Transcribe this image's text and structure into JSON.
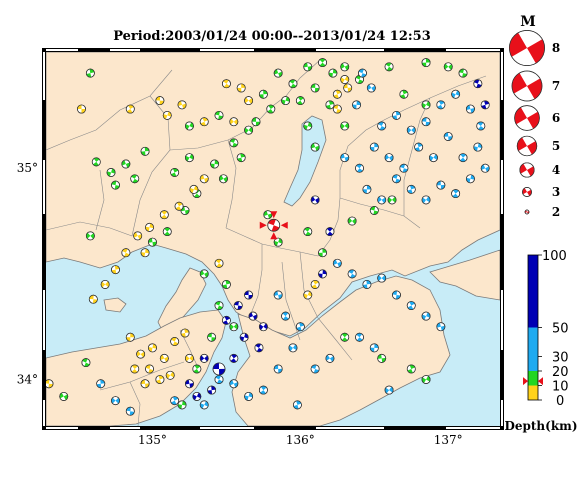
{
  "title": "Period:2003/01/24 00:00--2013/01/24 12:53",
  "map": {
    "lon_range": [
      134.28,
      137.35
    ],
    "lat_range": [
      33.78,
      35.55
    ],
    "lon_ticks": [
      {
        "value": 135,
        "label": "135°"
      },
      {
        "value": 136,
        "label": "136°"
      },
      {
        "value": 137,
        "label": "137°"
      }
    ],
    "lat_ticks": [
      {
        "value": 34,
        "label": "34°"
      },
      {
        "value": 35,
        "label": "35°"
      }
    ],
    "colors": {
      "sea": "#c8ecf7",
      "land": "#fce7cc",
      "border": "#7a7a7a"
    },
    "mainshock": {
      "lon": 135.82,
      "lat": 34.73,
      "color": "#e8101a"
    }
  },
  "magnitude_legend": {
    "header": "M",
    "items": [
      {
        "label": "8",
        "mag": 8
      },
      {
        "label": "7",
        "mag": 7
      },
      {
        "label": "6",
        "mag": 6
      },
      {
        "label": "5",
        "mag": 5
      },
      {
        "label": "4",
        "mag": 4
      },
      {
        "label": "3",
        "mag": 3
      },
      {
        "label": "2",
        "mag": 2
      }
    ],
    "color": "#e8101a"
  },
  "depth_scale": {
    "title": "Depth(km)",
    "range": [
      0,
      100
    ],
    "ticks": [
      {
        "value": 100,
        "label": "100"
      },
      {
        "value": 50,
        "label": "50"
      },
      {
        "value": 30,
        "label": "30"
      },
      {
        "value": 20,
        "label": "20"
      },
      {
        "value": 10,
        "label": "10"
      },
      {
        "value": 0,
        "label": "0"
      }
    ],
    "bands": [
      {
        "from": 0,
        "to": 10,
        "color": "#ffd21a"
      },
      {
        "from": 10,
        "to": 20,
        "color": "#22d622"
      },
      {
        "from": 20,
        "to": 50,
        "color": "#1eaaf0"
      },
      {
        "from": 50,
        "to": 100,
        "color": "#0000b4"
      }
    ],
    "marker_value": 13,
    "marker_color": "#e8101a"
  },
  "chart_data": {
    "type": "scatter",
    "title": "Period:2003/01/24 00:00--2013/01/24 12:53",
    "xlabel": "",
    "ylabel": "",
    "size_legend": "M",
    "color_legend": "Depth(km)",
    "xlim": [
      134.28,
      137.35
    ],
    "ylim": [
      33.78,
      35.55
    ],
    "series": [
      {
        "name": "",
        "fields": [
          "lon",
          "lat",
          "depth_km",
          "mag"
        ],
        "points": [
          [
            134.52,
            35.28,
            5,
            3
          ],
          [
            134.62,
            35.03,
            12,
            3
          ],
          [
            134.72,
            34.98,
            12,
            3
          ],
          [
            134.82,
            35.02,
            12,
            3
          ],
          [
            134.88,
            34.95,
            12,
            3
          ],
          [
            134.95,
            35.08,
            12,
            3
          ],
          [
            134.58,
            34.68,
            12,
            3
          ],
          [
            134.75,
            34.92,
            12,
            3
          ],
          [
            135.15,
            34.98,
            12,
            3
          ],
          [
            135.25,
            35.05,
            12,
            3
          ],
          [
            135.22,
            34.8,
            12,
            3
          ],
          [
            135.3,
            34.88,
            12,
            3
          ],
          [
            135.42,
            35.02,
            12,
            3
          ],
          [
            135.48,
            34.95,
            12,
            3
          ],
          [
            135.55,
            35.12,
            12,
            3
          ],
          [
            135.6,
            35.05,
            12,
            3
          ],
          [
            135.65,
            35.18,
            12,
            3
          ],
          [
            135.7,
            35.22,
            12,
            3
          ],
          [
            135.8,
            35.28,
            12,
            3
          ],
          [
            135.9,
            35.32,
            12,
            3
          ],
          [
            135.85,
            35.45,
            12,
            3
          ],
          [
            135.95,
            35.4,
            12,
            3
          ],
          [
            135.75,
            35.35,
            12,
            3
          ],
          [
            135.55,
            35.22,
            5,
            3
          ],
          [
            135.45,
            35.25,
            12,
            3
          ],
          [
            135.35,
            35.22,
            5,
            3
          ],
          [
            135.25,
            35.2,
            12,
            3
          ],
          [
            136.05,
            35.48,
            12,
            3
          ],
          [
            136.15,
            35.5,
            12,
            3
          ],
          [
            136.22,
            35.45,
            12,
            3
          ],
          [
            136.3,
            35.48,
            12,
            3
          ],
          [
            136.4,
            35.42,
            12,
            3
          ],
          [
            136.2,
            35.3,
            12,
            3
          ],
          [
            136.3,
            35.2,
            12,
            3
          ],
          [
            136.1,
            35.38,
            12,
            3
          ],
          [
            136.0,
            35.32,
            12,
            3
          ],
          [
            136.05,
            35.2,
            12,
            3
          ],
          [
            136.1,
            35.1,
            12,
            3
          ],
          [
            136.6,
            35.48,
            12,
            3
          ],
          [
            136.85,
            35.5,
            12,
            3
          ],
          [
            137.0,
            35.48,
            12,
            3
          ],
          [
            137.1,
            35.45,
            12,
            3
          ],
          [
            136.7,
            35.35,
            12,
            3
          ],
          [
            136.85,
            35.3,
            12,
            3
          ],
          [
            135.0,
            34.65,
            12,
            3
          ],
          [
            135.1,
            34.7,
            12,
            3
          ],
          [
            134.95,
            34.6,
            5,
            3
          ],
          [
            135.35,
            34.5,
            12,
            3
          ],
          [
            135.45,
            34.35,
            12,
            3
          ],
          [
            135.5,
            34.45,
            12,
            3
          ],
          [
            135.55,
            34.25,
            12,
            3
          ],
          [
            135.4,
            34.2,
            12,
            3
          ],
          [
            135.3,
            34.05,
            12,
            3
          ],
          [
            135.85,
            34.65,
            12,
            3
          ],
          [
            135.78,
            34.78,
            12,
            3
          ],
          [
            136.05,
            34.7,
            12,
            3
          ],
          [
            136.15,
            34.6,
            12,
            3
          ],
          [
            136.35,
            34.75,
            12,
            3
          ],
          [
            136.5,
            34.8,
            12,
            3
          ],
          [
            136.75,
            34.05,
            12,
            3
          ],
          [
            136.85,
            34.0,
            12,
            3
          ],
          [
            136.55,
            34.1,
            12,
            3
          ],
          [
            136.3,
            34.2,
            12,
            3
          ],
          [
            135.2,
            33.88,
            12,
            3
          ],
          [
            134.4,
            33.92,
            12,
            3
          ],
          [
            134.55,
            34.08,
            12,
            3
          ],
          [
            134.58,
            35.45,
            12,
            3
          ],
          [
            136.62,
            34.85,
            12,
            3
          ],
          [
            135.05,
            35.32,
            5,
            3
          ],
          [
            134.85,
            35.28,
            5,
            3
          ],
          [
            135.1,
            35.25,
            5,
            3
          ],
          [
            135.2,
            35.3,
            5,
            3
          ],
          [
            135.5,
            35.4,
            5,
            3
          ],
          [
            135.6,
            35.38,
            5,
            3
          ],
          [
            135.65,
            35.32,
            5,
            3
          ],
          [
            136.25,
            35.28,
            5,
            3
          ],
          [
            136.25,
            35.35,
            5,
            3
          ],
          [
            136.3,
            35.42,
            5,
            3
          ],
          [
            136.32,
            35.38,
            5,
            3
          ],
          [
            135.08,
            34.78,
            5,
            3
          ],
          [
            134.98,
            34.72,
            5,
            3
          ],
          [
            134.9,
            34.68,
            5,
            3
          ],
          [
            134.82,
            34.6,
            5,
            3
          ],
          [
            134.75,
            34.52,
            5,
            3
          ],
          [
            134.68,
            34.45,
            5,
            3
          ],
          [
            134.6,
            34.38,
            5,
            3
          ],
          [
            135.18,
            34.82,
            5,
            3
          ],
          [
            135.28,
            34.9,
            5,
            3
          ],
          [
            135.35,
            34.95,
            5,
            3
          ],
          [
            135.45,
            34.55,
            5,
            3
          ],
          [
            134.85,
            34.2,
            5,
            3
          ],
          [
            134.92,
            34.12,
            5,
            3
          ],
          [
            134.98,
            34.05,
            5,
            3
          ],
          [
            135.05,
            34.0,
            5,
            3
          ],
          [
            135.12,
            34.02,
            5,
            3
          ],
          [
            134.95,
            33.98,
            5,
            3
          ],
          [
            134.88,
            34.05,
            5,
            3
          ],
          [
            135.0,
            34.15,
            5,
            3
          ],
          [
            135.08,
            34.1,
            5,
            3
          ],
          [
            135.15,
            34.18,
            5,
            3
          ],
          [
            135.22,
            34.22,
            5,
            3
          ],
          [
            135.25,
            34.1,
            5,
            3
          ],
          [
            134.3,
            33.98,
            5,
            3
          ],
          [
            136.1,
            34.45,
            5,
            3
          ],
          [
            136.05,
            34.4,
            5,
            3
          ],
          [
            136.3,
            35.05,
            35,
            3
          ],
          [
            136.4,
            35.0,
            35,
            3
          ],
          [
            136.5,
            35.1,
            35,
            3
          ],
          [
            136.6,
            35.05,
            35,
            3
          ],
          [
            136.7,
            35.0,
            35,
            3
          ],
          [
            136.8,
            35.1,
            35,
            3
          ],
          [
            136.9,
            35.05,
            35,
            3
          ],
          [
            137.0,
            35.15,
            35,
            3
          ],
          [
            137.1,
            35.05,
            35,
            3
          ],
          [
            137.2,
            35.1,
            35,
            3
          ],
          [
            137.25,
            35.0,
            35,
            3
          ],
          [
            136.55,
            35.2,
            35,
            3
          ],
          [
            136.65,
            35.25,
            35,
            3
          ],
          [
            136.75,
            35.18,
            35,
            3
          ],
          [
            136.85,
            35.22,
            35,
            3
          ],
          [
            136.95,
            35.3,
            35,
            3
          ],
          [
            137.05,
            35.35,
            35,
            3
          ],
          [
            137.15,
            35.28,
            35,
            3
          ],
          [
            137.22,
            35.2,
            35,
            3
          ],
          [
            136.45,
            34.9,
            35,
            3
          ],
          [
            136.55,
            34.85,
            35,
            3
          ],
          [
            136.65,
            34.95,
            35,
            3
          ],
          [
            136.75,
            34.9,
            35,
            3
          ],
          [
            136.85,
            34.85,
            35,
            3
          ],
          [
            136.95,
            34.92,
            35,
            3
          ],
          [
            137.05,
            34.88,
            35,
            3
          ],
          [
            137.15,
            34.95,
            35,
            3
          ],
          [
            136.25,
            34.55,
            35,
            3
          ],
          [
            136.35,
            34.5,
            35,
            3
          ],
          [
            136.45,
            34.45,
            35,
            3
          ],
          [
            136.55,
            34.48,
            35,
            3
          ],
          [
            136.65,
            34.4,
            35,
            3
          ],
          [
            136.75,
            34.35,
            35,
            3
          ],
          [
            136.85,
            34.3,
            35,
            3
          ],
          [
            136.95,
            34.25,
            35,
            3
          ],
          [
            136.4,
            34.2,
            35,
            3
          ],
          [
            136.5,
            34.15,
            35,
            3
          ],
          [
            136.2,
            34.1,
            35,
            3
          ],
          [
            136.1,
            34.05,
            35,
            3
          ],
          [
            136.0,
            34.25,
            35,
            3
          ],
          [
            135.95,
            34.15,
            35,
            3
          ],
          [
            135.85,
            34.05,
            35,
            3
          ],
          [
            135.75,
            33.95,
            35,
            3
          ],
          [
            135.65,
            33.92,
            35,
            3
          ],
          [
            135.55,
            33.98,
            35,
            3
          ],
          [
            135.45,
            34.0,
            35,
            3
          ],
          [
            134.65,
            33.98,
            35,
            3
          ],
          [
            134.75,
            33.9,
            35,
            3
          ],
          [
            134.85,
            33.85,
            35,
            3
          ],
          [
            135.15,
            33.9,
            35,
            3
          ],
          [
            135.35,
            33.88,
            35,
            3
          ],
          [
            135.85,
            34.4,
            35,
            3
          ],
          [
            135.9,
            34.3,
            35,
            3
          ],
          [
            136.38,
            35.3,
            35,
            3
          ],
          [
            136.48,
            35.38,
            35,
            3
          ],
          [
            136.42,
            35.45,
            35,
            3
          ],
          [
            135.98,
            33.88,
            35,
            3
          ],
          [
            136.6,
            33.95,
            35,
            3
          ],
          [
            135.45,
            34.05,
            70,
            4
          ],
          [
            135.55,
            34.1,
            70,
            3
          ],
          [
            135.62,
            34.2,
            70,
            3
          ],
          [
            135.68,
            34.3,
            70,
            3
          ],
          [
            135.72,
            34.15,
            70,
            3
          ],
          [
            135.4,
            33.95,
            70,
            3
          ],
          [
            135.35,
            34.1,
            70,
            3
          ],
          [
            135.58,
            34.35,
            70,
            3
          ],
          [
            135.5,
            34.28,
            70,
            3
          ],
          [
            135.3,
            33.92,
            70,
            3
          ],
          [
            135.25,
            33.98,
            70,
            3
          ],
          [
            136.2,
            34.7,
            70,
            3
          ],
          [
            136.15,
            34.5,
            70,
            3
          ],
          [
            136.1,
            34.85,
            70,
            3
          ],
          [
            137.2,
            35.4,
            70,
            3
          ],
          [
            137.25,
            35.3,
            70,
            3
          ],
          [
            135.75,
            34.25,
            70,
            3
          ],
          [
            135.65,
            34.4,
            70,
            3
          ]
        ]
      }
    ]
  }
}
